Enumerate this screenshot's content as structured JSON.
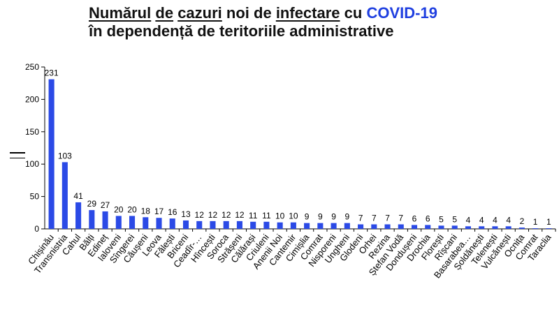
{
  "title": {
    "line1_w1": "Numărul",
    "line1_w2": "de",
    "line1_w3": "cazuri",
    "line1_w4": "noi de",
    "line1_w5": "infectare",
    "line1_w6": "cu",
    "line1_accent": "COVID-19",
    "line2": "în dependență de teritoriile administrative"
  },
  "colors": {
    "bar": "#2b4ae6",
    "accent": "#1f3fe0",
    "axis": "#000000"
  },
  "chart_data": {
    "type": "bar",
    "title": "Numărul de cazuri noi de infectare cu COVID-19 în dependență de teritoriile administrative",
    "ylim": [
      0,
      250
    ],
    "yticks": [
      0,
      50,
      100,
      150,
      200,
      250
    ],
    "grid": false,
    "categories": [
      "Chișinău",
      "Transnistria",
      "Cahul",
      "Bălți",
      "Edineț",
      "Ialoveni",
      "Sîngerei",
      "Căușeni",
      "Leova",
      "Fălești",
      "Briceni",
      "Ceadîr-…",
      "Hîncești",
      "Soroca",
      "Strășeni",
      "Călărași",
      "Criuleni",
      "Anenii Noi",
      "Cantemir",
      "Cimișlia",
      "Comrat",
      "Nisporeni",
      "Ungheni",
      "Glodeni",
      "Orhei",
      "Rezina",
      "Ștefan Vodă",
      "Dondușeni",
      "Drochia",
      "Florești",
      "Rîșcani",
      "Basarabea…",
      "Șoldănești",
      "Telenești",
      "Vulcănești",
      "Ocnița",
      "Comrat",
      "Taraclia"
    ],
    "values": [
      231,
      103,
      41,
      29,
      27,
      20,
      20,
      18,
      17,
      16,
      13,
      12,
      12,
      12,
      12,
      11,
      11,
      10,
      10,
      9,
      9,
      9,
      9,
      7,
      7,
      7,
      7,
      6,
      6,
      5,
      5,
      4,
      4,
      4,
      4,
      2,
      1,
      1
    ]
  }
}
